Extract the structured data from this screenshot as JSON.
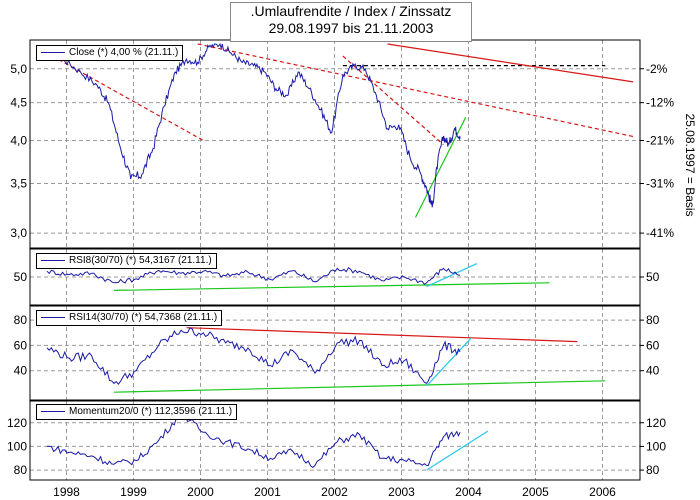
{
  "title": {
    "line1": ".Umlaufrendite / Index / Zinssatz",
    "line2": "29.08.1997 bis 21.11.2003"
  },
  "right_axis_label": "25.08.1997 = Basis",
  "colors": {
    "price": "#1a1aa8",
    "resistance": "#d81818",
    "support": "#18c818",
    "projection": "#22c8ee",
    "grid": "#9a9a9a",
    "frame": "#000000"
  },
  "chart_data": [
    {
      "type": "line",
      "panel": "price",
      "legend": "Close (*) 4,00 % (21.11.)",
      "x_ticks": [
        "1998",
        "1999",
        "2000",
        "2001",
        "2002",
        "2003",
        "2004",
        "2005",
        "2006"
      ],
      "y_ticks": [
        "5,0",
        "4,5",
        "4,0",
        "3,5",
        "3,0"
      ],
      "y_right_ticks": [
        "-2%",
        "-12%",
        "-21%",
        "-31%",
        "-41%"
      ],
      "ylim": [
        2.9,
        5.4
      ],
      "scale": "log",
      "series": [
        {
          "x": [
            "1997-09",
            "1997-12",
            "1998-03",
            "1998-06",
            "1998-08",
            "1998-10",
            "1998-12",
            "1999-02",
            "1999-04",
            "1999-06",
            "1999-08",
            "1999-10",
            "1999-12",
            "2000-02",
            "2000-04",
            "2000-06",
            "2000-08",
            "2000-10",
            "2000-12",
            "2001-02",
            "2001-04",
            "2001-06",
            "2001-08",
            "2001-10",
            "2001-12",
            "2002-02",
            "2002-04",
            "2002-06",
            "2002-08",
            "2002-10",
            "2002-12",
            "2003-02",
            "2003-04",
            "2003-05",
            "2003-06",
            "2003-07",
            "2003-08",
            "2003-09",
            "2003-10",
            "2003-11"
          ],
          "values": [
            5.35,
            5.15,
            4.95,
            4.75,
            4.5,
            3.95,
            3.55,
            3.6,
            3.9,
            4.45,
            4.95,
            5.15,
            5.1,
            5.35,
            5.4,
            5.25,
            5.1,
            5.05,
            4.95,
            4.7,
            4.6,
            4.95,
            4.7,
            4.4,
            4.1,
            4.9,
            5.05,
            5.0,
            4.6,
            4.15,
            4.2,
            3.8,
            3.6,
            3.45,
            3.25,
            3.75,
            4.05,
            3.95,
            4.15,
            4.05
          ]
        }
      ],
      "trendlines": [
        {
          "color": "resistance",
          "style": "dashed",
          "points": [
            [
              "1997-10",
              5.2
            ],
            [
              "2000-01",
              4.0
            ]
          ]
        },
        {
          "color": "resistance",
          "style": "dashed",
          "points": [
            [
              "1999-12",
              5.4
            ],
            [
              "2006-06",
              4.05
            ]
          ]
        },
        {
          "color": "resistance",
          "style": "dashed",
          "points": [
            [
              "2002-02",
              5.2
            ],
            [
              "2003-08",
              3.95
            ]
          ]
        },
        {
          "color": "frame",
          "style": "dashed",
          "points": [
            [
              "2002-02",
              5.05
            ],
            [
              "2006-01",
              5.05
            ]
          ]
        },
        {
          "color": "resistance",
          "style": "solid",
          "points": [
            [
              "2002-10",
              5.4
            ],
            [
              "2006-06",
              4.8
            ]
          ]
        },
        {
          "color": "support",
          "style": "solid",
          "points": [
            [
              "2003-03",
              3.15
            ],
            [
              "2003-12",
              4.3
            ]
          ]
        }
      ]
    },
    {
      "type": "line",
      "panel": "rsi8",
      "legend": "RSI8(30/70) (*) 54,3167 (21.11.)",
      "y_ticks": [
        "50"
      ],
      "y_right_ticks": [
        "50"
      ],
      "ylim": [
        0,
        100
      ],
      "series": [
        {
          "x": [
            "1997-09",
            "1998-01",
            "1998-05",
            "1998-09",
            "1999-01",
            "1999-05",
            "1999-09",
            "2000-01",
            "2000-05",
            "2000-09",
            "2001-01",
            "2001-05",
            "2001-09",
            "2002-01",
            "2002-05",
            "2002-09",
            "2003-01",
            "2003-05",
            "2003-08",
            "2003-11"
          ],
          "values": [
            62,
            55,
            58,
            38,
            46,
            64,
            58,
            62,
            52,
            60,
            45,
            63,
            40,
            68,
            62,
            42,
            50,
            38,
            68,
            54
          ]
        }
      ],
      "trendlines": [
        {
          "color": "support",
          "style": "solid",
          "points": [
            [
              "1998-09",
              22
            ],
            [
              "2005-03",
              38
            ]
          ]
        },
        {
          "color": "projection",
          "style": "solid",
          "points": [
            [
              "2003-05",
              30
            ],
            [
              "2004-02",
              78
            ]
          ]
        }
      ]
    },
    {
      "type": "line",
      "panel": "rsi14",
      "legend": "RSI14(30/70) (*) 54,7368 (21.11.)",
      "y_ticks": [
        "80",
        "60",
        "40"
      ],
      "y_right_ticks": [
        "80",
        "60",
        "40"
      ],
      "ylim": [
        20,
        88
      ],
      "series": [
        {
          "x": [
            "1997-09",
            "1998-01",
            "1998-05",
            "1998-09",
            "1999-01",
            "1999-05",
            "1999-09",
            "2000-01",
            "2000-05",
            "2000-09",
            "2001-01",
            "2001-05",
            "2001-09",
            "2002-01",
            "2002-05",
            "2002-09",
            "2003-01",
            "2003-05",
            "2003-08",
            "2003-11"
          ],
          "values": [
            58,
            50,
            52,
            30,
            40,
            60,
            72,
            70,
            62,
            58,
            44,
            56,
            38,
            62,
            64,
            44,
            48,
            30,
            60,
            55
          ]
        }
      ],
      "trendlines": [
        {
          "color": "resistance",
          "style": "solid",
          "points": [
            [
              "1999-10",
              74
            ],
            [
              "2005-08",
              63
            ]
          ]
        },
        {
          "color": "support",
          "style": "solid",
          "points": [
            [
              "1998-09",
              23
            ],
            [
              "2006-01",
              32
            ]
          ]
        },
        {
          "color": "projection",
          "style": "solid",
          "points": [
            [
              "2003-05",
              28
            ],
            [
              "2004-01",
              66
            ]
          ]
        }
      ]
    },
    {
      "type": "line",
      "panel": "momentum",
      "legend": "Momentum20/0 (*) 112,3596 (21.11.)",
      "y_ticks": [
        "120",
        "100",
        "80"
      ],
      "y_right_ticks": [
        "120",
        "100",
        "80"
      ],
      "ylim": [
        75,
        135
      ],
      "series": [
        {
          "x": [
            "1997-09",
            "1998-01",
            "1998-05",
            "1998-09",
            "1999-01",
            "1999-05",
            "1999-09",
            "2000-01",
            "2000-05",
            "2000-09",
            "2001-01",
            "2001-05",
            "2001-09",
            "2002-01",
            "2002-05",
            "2002-09",
            "2003-01",
            "2003-05",
            "2003-08",
            "2003-11"
          ],
          "values": [
            100,
            95,
            92,
            85,
            88,
            105,
            128,
            112,
            104,
            98,
            90,
            96,
            84,
            104,
            110,
            90,
            88,
            84,
            108,
            112
          ]
        }
      ],
      "trendlines": [
        {
          "color": "projection",
          "style": "solid",
          "points": [
            [
              "2003-05",
              80
            ],
            [
              "2004-04",
              113
            ]
          ]
        }
      ]
    }
  ]
}
